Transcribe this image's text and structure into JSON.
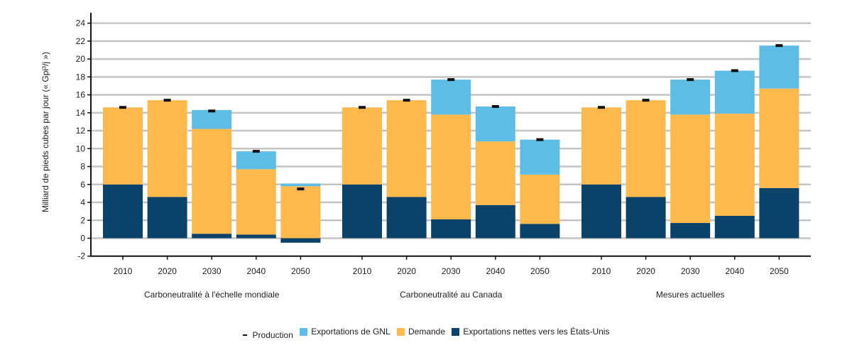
{
  "chart_data": {
    "type": "bar",
    "stacked": true,
    "title": "",
    "ylabel": "Milliard de pieds cubes par jour (« Gpi³/j »)",
    "xlabel": "",
    "ylim": [
      -2,
      24
    ],
    "yticks": [
      -2,
      0,
      2,
      4,
      6,
      8,
      10,
      12,
      14,
      16,
      18,
      20,
      22,
      24
    ],
    "grid": true,
    "legend_position": "bottom",
    "groups": [
      {
        "name": "Carboneutralité à l'échelle mondiale",
        "categories": [
          "2010",
          "2020",
          "2030",
          "2040",
          "2050"
        ]
      },
      {
        "name": "Carboneutralité au Canada",
        "categories": [
          "2010",
          "2020",
          "2030",
          "2040",
          "2050"
        ]
      },
      {
        "name": "Mesures actuelles",
        "categories": [
          "2010",
          "2020",
          "2030",
          "2040",
          "2050"
        ]
      }
    ],
    "series": [
      {
        "name": "Exportations nettes vers les États-Unis",
        "color": "#0a4269",
        "values": [
          [
            6.0,
            4.6,
            0.5,
            0.4,
            -0.5
          ],
          [
            6.0,
            4.6,
            2.1,
            3.7,
            1.6
          ],
          [
            6.0,
            4.6,
            1.7,
            2.5,
            5.6
          ]
        ]
      },
      {
        "name": "Demande",
        "color": "#fdb94c",
        "values": [
          [
            8.6,
            10.8,
            11.7,
            7.3,
            5.8
          ],
          [
            8.6,
            10.8,
            11.7,
            7.1,
            5.5
          ],
          [
            8.6,
            10.8,
            12.1,
            11.4,
            11.1
          ]
        ]
      },
      {
        "name": "Exportations de GNL",
        "color": "#5ebde5",
        "values": [
          [
            0,
            0,
            2.1,
            2.0,
            0.3
          ],
          [
            0,
            0,
            3.9,
            3.9,
            3.9
          ],
          [
            0,
            0,
            3.9,
            4.8,
            4.8
          ]
        ]
      },
      {
        "name": "Production",
        "color": "#111111",
        "marker": "dash",
        "values": [
          [
            14.6,
            15.4,
            14.2,
            9.7,
            5.5
          ],
          [
            14.6,
            15.4,
            17.7,
            14.7,
            11.0
          ],
          [
            14.6,
            15.4,
            17.7,
            18.7,
            21.5
          ]
        ]
      }
    ]
  },
  "legend": {
    "items": [
      {
        "label": "Production",
        "type": "dash",
        "color": "#111111"
      },
      {
        "label": "Exportations de GNL",
        "type": "swatch",
        "color": "#5ebde5"
      },
      {
        "label": "Demande",
        "type": "swatch",
        "color": "#fdb94c"
      },
      {
        "label": "Exportations nettes vers les États-Unis",
        "type": "swatch",
        "color": "#0a4269"
      }
    ]
  }
}
